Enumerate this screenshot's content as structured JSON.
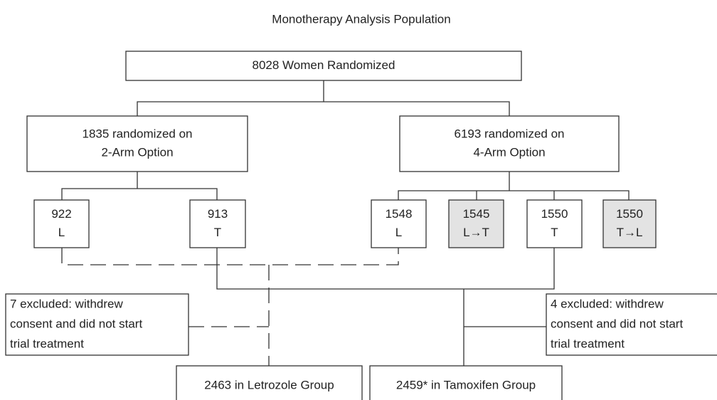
{
  "title": "Monotherapy Analysis Population",
  "nodes": [
    {
      "lines": [
        "8028 Women Randomized"
      ]
    },
    {
      "lines": [
        "1835 randomized on",
        "2-Arm Option"
      ]
    },
    {
      "lines": [
        "6193 randomized on",
        "4-Arm Option"
      ]
    },
    {
      "lines": [
        "922",
        "L"
      ]
    },
    {
      "lines": [
        "913",
        "T"
      ]
    },
    {
      "lines": [
        "1548",
        "L"
      ]
    },
    {
      "lines": [
        "1545",
        "L→T"
      ]
    },
    {
      "lines": [
        "1550",
        "T"
      ]
    },
    {
      "lines": [
        "1550",
        "T→L"
      ]
    },
    {
      "lines": [
        "7 excluded: withdrew",
        "consent and did not start",
        "trial treatment"
      ]
    },
    {
      "lines": [
        "4 excluded: withdrew",
        "consent and did not start",
        "trial treatment"
      ]
    },
    {
      "lines": [
        "2463 in Letrozole Group"
      ]
    },
    {
      "lines": [
        "2459* in Tamoxifen Group"
      ]
    }
  ]
}
